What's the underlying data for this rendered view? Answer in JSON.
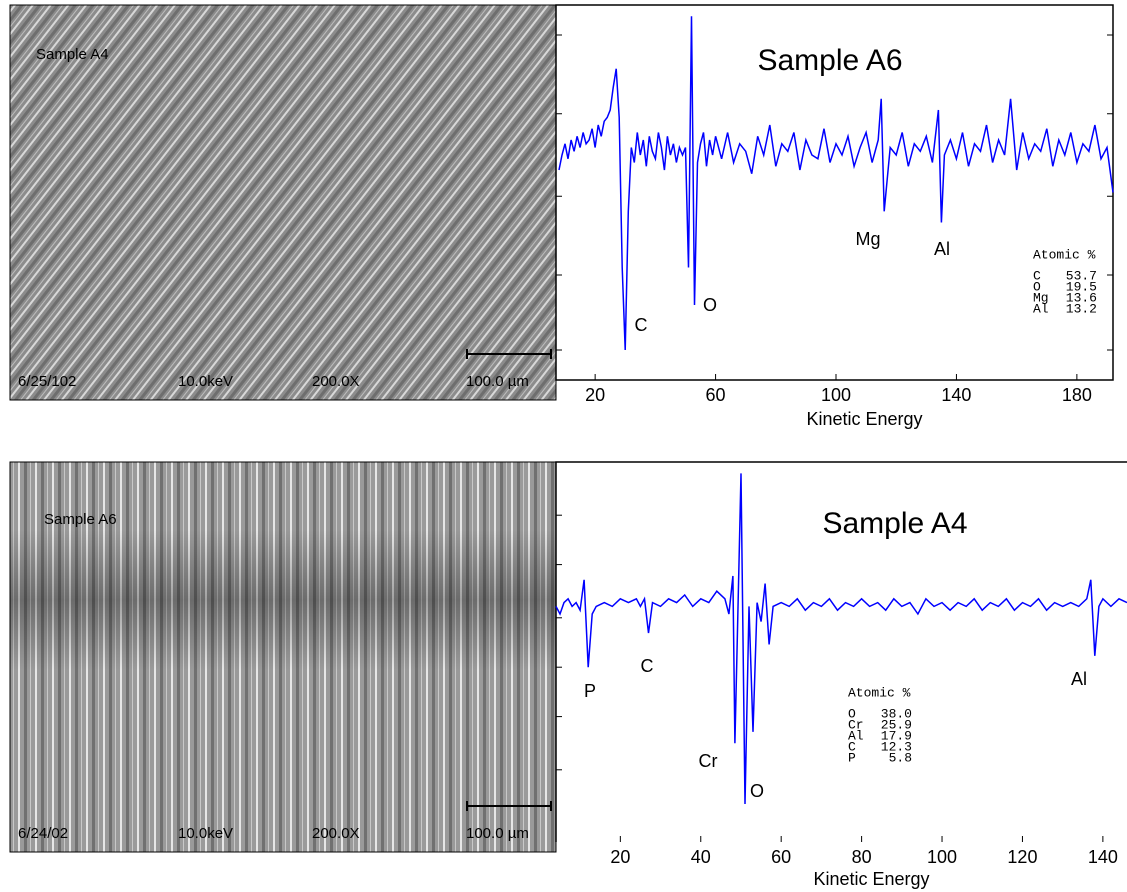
{
  "images": [
    {
      "label": "Sample A4",
      "date": "6/25/102",
      "voltage": "10.0keV",
      "magnification": "200.0X",
      "scale": "100.0 µm"
    },
    {
      "label": "Sample A6",
      "date": "6/24/02",
      "voltage": "10.0keV",
      "magnification": "200.0X",
      "scale": "100.0 µm"
    }
  ],
  "chart_data": [
    {
      "type": "line",
      "title": "Sample A6",
      "x_label": "Kinetic Energy",
      "color": "#0000ff",
      "xlim": [
        7,
        192
      ],
      "xticks": [
        20,
        60,
        100,
        140,
        180
      ],
      "ylim": [
        0,
        100
      ],
      "yticks": [
        8,
        28,
        49,
        71,
        92
      ],
      "x": [
        8,
        9,
        10,
        11,
        12,
        13,
        14,
        15,
        16,
        17,
        18,
        19,
        20,
        21,
        22,
        23,
        24,
        25,
        26,
        27,
        28,
        29,
        30,
        31,
        32,
        33,
        34,
        35,
        36,
        37,
        38,
        39,
        40,
        41,
        42,
        43,
        44,
        45,
        46,
        47,
        48,
        49,
        50,
        51,
        52,
        53,
        54,
        55,
        56,
        57,
        58,
        59,
        60,
        62,
        64,
        66,
        68,
        70,
        72,
        74,
        76,
        78,
        80,
        82,
        84,
        86,
        88,
        90,
        92,
        94,
        96,
        98,
        100,
        102,
        104,
        106,
        108,
        110,
        112,
        114,
        115,
        116,
        118,
        120,
        122,
        124,
        126,
        128,
        130,
        132,
        134,
        135,
        136,
        138,
        140,
        142,
        144,
        146,
        148,
        150,
        152,
        154,
        156,
        158,
        160,
        162,
        164,
        166,
        168,
        170,
        172,
        174,
        176,
        178,
        180,
        182,
        184,
        186,
        188,
        190,
        192
      ],
      "values": [
        56,
        60,
        63,
        59,
        64,
        61,
        65,
        62,
        66,
        63,
        64,
        67,
        62,
        68,
        65,
        69,
        70,
        72,
        78,
        83,
        70,
        30,
        8,
        45,
        62,
        58,
        66,
        60,
        64,
        57,
        65,
        61,
        59,
        66,
        62,
        56,
        65,
        60,
        63,
        58,
        62,
        60,
        62,
        30,
        97,
        20,
        58,
        63,
        66,
        57,
        64,
        60,
        65,
        59,
        66,
        58,
        63,
        61,
        55,
        65,
        60,
        68,
        57,
        63,
        61,
        66,
        56,
        64,
        60,
        59,
        67,
        58,
        63,
        60,
        65,
        57,
        62,
        66,
        58,
        64,
        75,
        45,
        62,
        60,
        66,
        57,
        63,
        61,
        65,
        58,
        72,
        42,
        60,
        64,
        59,
        66,
        57,
        63,
        61,
        68,
        58,
        64,
        60,
        75,
        56,
        66,
        59,
        63,
        61,
        67,
        57,
        64,
        60,
        66,
        58,
        63,
        61,
        68,
        59,
        62,
        50
      ],
      "peak_labels": [
        "C",
        "O",
        "Mg",
        "Al"
      ],
      "atomic_table": {
        "title": "Atomic %",
        "rows": [
          [
            "C",
            "53.7"
          ],
          [
            "O",
            "19.5"
          ],
          [
            "Mg",
            "13.6"
          ],
          [
            "Al",
            "13.2"
          ]
        ]
      }
    },
    {
      "type": "line",
      "title": "Sample A4",
      "x_label": "Kinetic Energy",
      "color": "#0000ff",
      "xlim": [
        4,
        146
      ],
      "xticks": [
        20,
        40,
        60,
        80,
        100,
        120,
        140
      ],
      "ylim": [
        0,
        100
      ],
      "yticks": [
        19,
        33,
        46,
        59,
        73,
        86
      ],
      "x": [
        4,
        5,
        6,
        7,
        8,
        9,
        10,
        11,
        12,
        13,
        14,
        16,
        18,
        20,
        22,
        24,
        25,
        26,
        27,
        28,
        30,
        32,
        34,
        36,
        38,
        40,
        42,
        44,
        46,
        47,
        48,
        48.5,
        49,
        50,
        51,
        52,
        53,
        54,
        55,
        56,
        57,
        58,
        60,
        62,
        64,
        66,
        68,
        70,
        72,
        74,
        76,
        78,
        80,
        82,
        84,
        86,
        88,
        90,
        92,
        94,
        96,
        98,
        100,
        102,
        104,
        106,
        108,
        110,
        112,
        114,
        116,
        118,
        120,
        122,
        124,
        126,
        128,
        130,
        132,
        134,
        136,
        137,
        138,
        139,
        140,
        142,
        144,
        146
      ],
      "values": [
        62,
        60,
        63,
        64,
        62,
        63,
        61,
        69,
        46,
        60,
        62,
        63,
        62,
        64,
        63,
        64,
        62,
        64,
        55,
        63,
        62,
        64,
        63,
        65,
        62,
        64,
        63,
        66,
        64,
        60,
        70,
        26,
        50,
        97,
        10,
        62,
        29,
        63,
        58,
        68,
        52,
        62,
        63,
        62,
        64,
        61,
        63,
        62,
        64,
        61,
        63,
        62,
        64,
        62,
        63,
        61,
        64,
        62,
        63,
        60,
        64,
        62,
        63,
        61,
        63,
        62,
        64,
        61,
        63,
        62,
        64,
        61,
        63,
        62,
        64,
        61,
        63,
        62,
        63,
        62,
        64,
        69,
        49,
        62,
        64,
        62,
        64,
        63
      ],
      "peak_labels": [
        "P",
        "C",
        "Cr",
        "O",
        "Al"
      ],
      "atomic_table": {
        "title": "Atomic %",
        "rows": [
          [
            "O",
            "38.0"
          ],
          [
            "Cr",
            "25.9"
          ],
          [
            "Al",
            "17.9"
          ],
          [
            "C",
            "12.3"
          ],
          [
            "P",
            "5.8"
          ]
        ]
      }
    }
  ]
}
